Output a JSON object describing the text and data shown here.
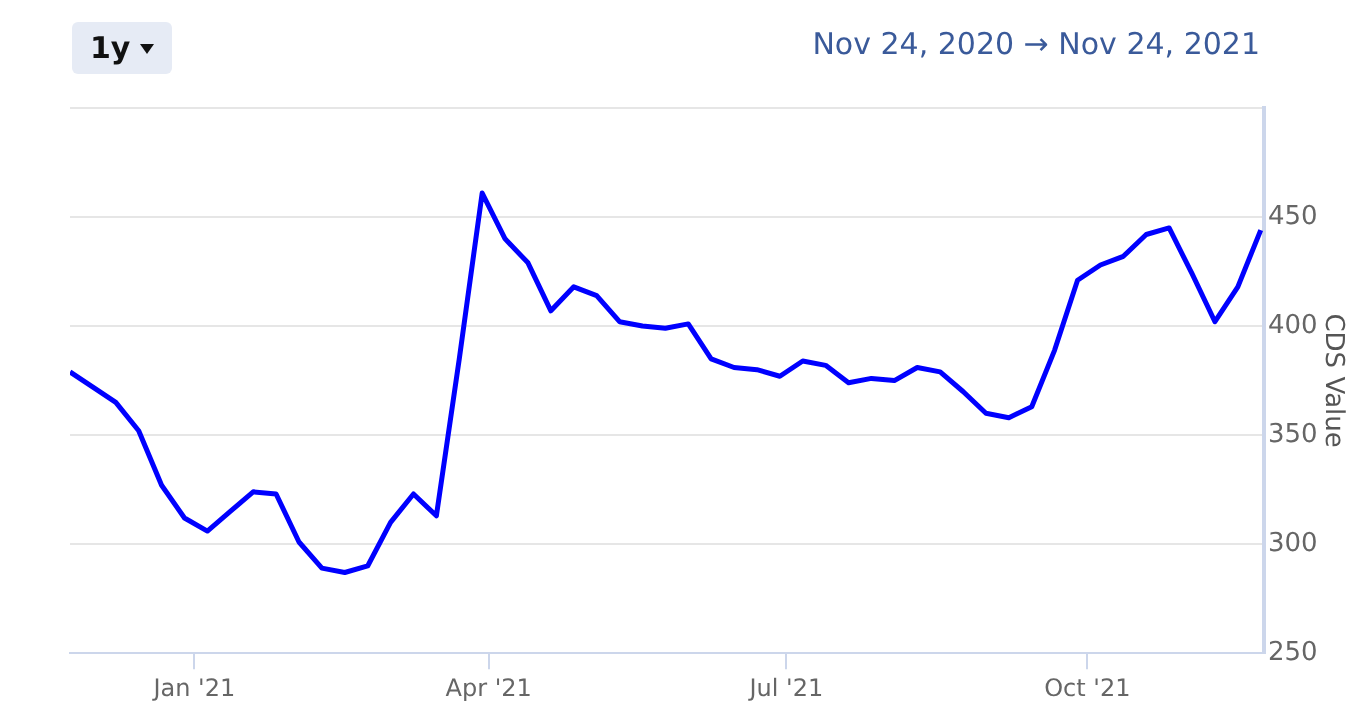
{
  "chart_data": {
    "type": "line",
    "ylabel": "CDS Value",
    "annotations": [
      "1y",
      "Nov 24, 2020 → Nov 24, 2021"
    ],
    "x": [
      "2020-11-24",
      "2020-12-01",
      "2020-12-08",
      "2020-12-15",
      "2020-12-22",
      "2020-12-29",
      "2021-01-05",
      "2021-01-12",
      "2021-01-19",
      "2021-01-26",
      "2021-02-02",
      "2021-02-09",
      "2021-02-16",
      "2021-02-23",
      "2021-03-02",
      "2021-03-09",
      "2021-03-16",
      "2021-03-23",
      "2021-03-30",
      "2021-04-06",
      "2021-04-13",
      "2021-04-20",
      "2021-04-27",
      "2021-05-04",
      "2021-05-11",
      "2021-05-18",
      "2021-05-25",
      "2021-06-01",
      "2021-06-08",
      "2021-06-15",
      "2021-06-22",
      "2021-06-29",
      "2021-07-06",
      "2021-07-13",
      "2021-07-20",
      "2021-07-27",
      "2021-08-03",
      "2021-08-10",
      "2021-08-17",
      "2021-08-24",
      "2021-08-31",
      "2021-09-07",
      "2021-09-14",
      "2021-09-21",
      "2021-09-28",
      "2021-10-05",
      "2021-10-12",
      "2021-10-19",
      "2021-10-26",
      "2021-11-02",
      "2021-11-09",
      "2021-11-16",
      "2021-11-23"
    ],
    "series": [
      {
        "color": "#0000ff",
        "values": [
          379,
          372,
          365,
          352,
          327,
          312,
          306,
          315,
          324,
          323,
          301,
          289,
          287,
          290,
          310,
          323,
          313,
          385,
          461,
          440,
          429,
          407,
          418,
          414,
          402,
          400,
          399,
          401,
          385,
          381,
          380,
          377,
          384,
          382,
          374,
          376,
          375,
          381,
          379,
          370,
          360,
          358,
          363,
          389,
          421,
          428,
          432,
          442,
          445,
          424,
          402,
          418,
          444
        ]
      }
    ],
    "xlim": [
      "2020-11-24",
      "2021-11-24"
    ],
    "xticks": [
      {
        "value": "2021-01-01",
        "label": "Jan '21"
      },
      {
        "value": "2021-04-01",
        "label": "Apr '21"
      },
      {
        "value": "2021-07-01",
        "label": "Jul '21"
      },
      {
        "value": "2021-10-01",
        "label": "Oct '21"
      }
    ],
    "ylim": [
      250,
      500
    ],
    "yticks": [
      250,
      300,
      350,
      400,
      450,
      {
        "value": 500,
        "label": null
      }
    ],
    "grid": "y",
    "legend": false,
    "marker": "none",
    "line_style": "solid"
  }
}
